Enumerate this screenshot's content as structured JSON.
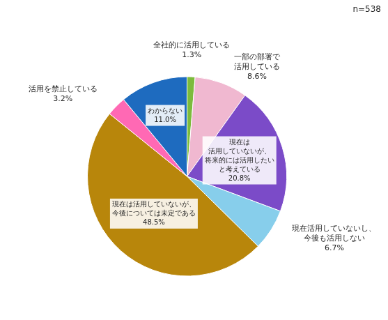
{
  "chart_data": {
    "type": "pie",
    "categories": [
      "全社的に活用している",
      "一部の部署で\n活用している",
      "現在は\n活用していないが、\n将来的には活用したい\nと考えている",
      "現在活用していないし、\n今後も活用しない",
      "現在は活用していないが、\n今後については未定である",
      "活用を禁止している",
      "わからない"
    ],
    "values": [
      1.3,
      8.6,
      20.8,
      6.7,
      48.5,
      3.2,
      11.0
    ],
    "value_labels": [
      "1.3%",
      "8.6%",
      "20.8%",
      "6.7%",
      "48.5%",
      "3.2%",
      "11.0%"
    ],
    "colors": [
      "#7cbb3c",
      "#f0b8d0",
      "#7b4bc8",
      "#87ceeb",
      "#b8860b",
      "#ff69b4",
      "#1e6bbf"
    ],
    "data_labels": true,
    "annotations": [
      "n=538"
    ]
  }
}
